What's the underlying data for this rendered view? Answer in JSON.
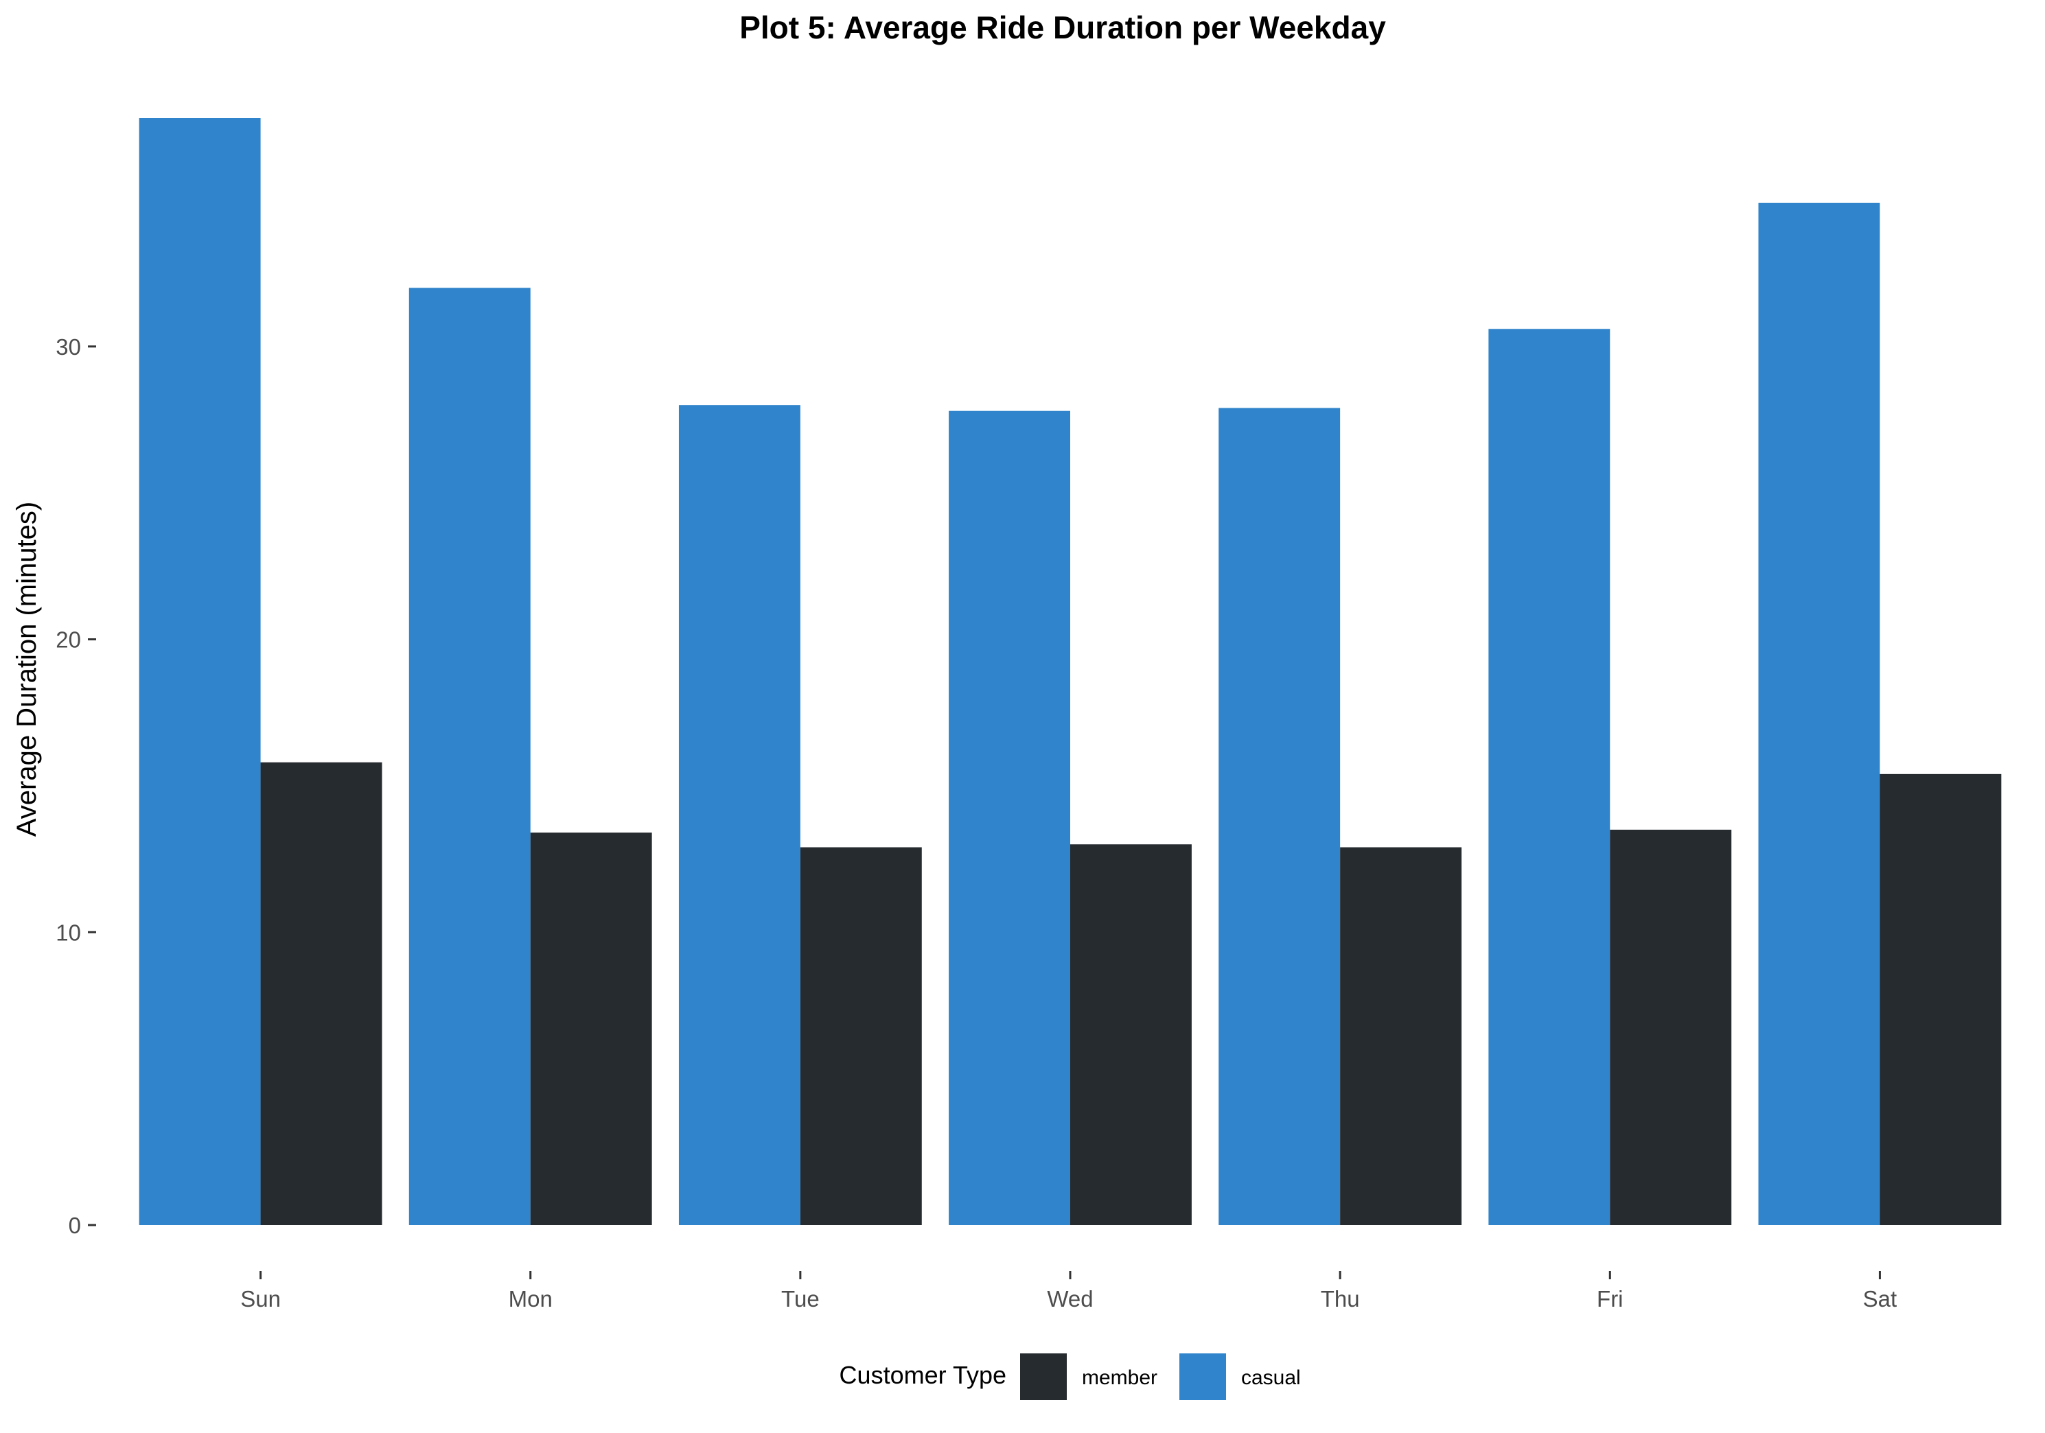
{
  "chart_data": {
    "type": "bar",
    "title": "Plot 5: Average Ride Duration per Weekday",
    "xlabel": "",
    "ylabel": "Average Duration (minutes)",
    "categories": [
      "Sun",
      "Mon",
      "Tue",
      "Wed",
      "Thu",
      "Fri",
      "Sat"
    ],
    "series": [
      {
        "name": "casual",
        "color": "#3084cb",
        "values": [
          37.8,
          32.0,
          28.0,
          27.8,
          27.9,
          30.6,
          34.9
        ]
      },
      {
        "name": "member",
        "color": "#262b2f",
        "values": [
          15.8,
          13.4,
          12.9,
          13.0,
          12.9,
          13.5,
          15.4
        ]
      }
    ],
    "yticks": [
      0,
      10,
      20,
      30
    ],
    "ylim": [
      0,
      37.8
    ],
    "grid": false,
    "legend": {
      "title": "Customer Type",
      "position": "bottom",
      "entries": [
        {
          "label": "member",
          "color": "#262b2f"
        },
        {
          "label": "casual",
          "color": "#3084cb"
        }
      ]
    }
  }
}
